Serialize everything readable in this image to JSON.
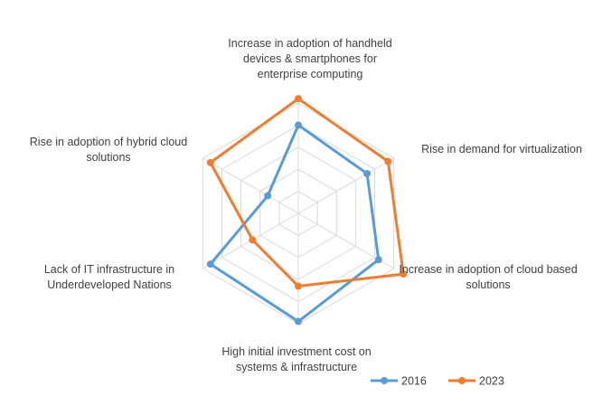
{
  "chart_data": {
    "type": "radar",
    "title": "",
    "axes": [
      "Increase in adoption of handheld devices & smartphones for enterprise computing",
      "Rise in demand for virtualization",
      "Increase in adoption of cloud based solutions",
      "High initial investment cost on systems & infrastructure",
      "Lack of IT infrastructure in Underdeveloped Nations",
      "Rise in adoption of hybrid cloud solutions"
    ],
    "axis_label_lines": [
      [
        "Increase in adoption of handheld",
        "devices & smartphones for",
        "enterprise computing"
      ],
      [
        "Rise in demand for virtualization"
      ],
      [
        "Increase in adoption of cloud based",
        "solutions"
      ],
      [
        "High initial investment cost on",
        "systems & infrastructure"
      ],
      [
        "Lack of IT infrastructure in",
        "Underdeveloped Nations"
      ],
      [
        "Rise in adoption of hybrid cloud",
        "solutions"
      ]
    ],
    "rmax": 5,
    "gridlines": 5,
    "series": [
      {
        "name": "2016",
        "color": "#5B9BD5",
        "values": [
          4.0,
          3.6,
          4.2,
          4.9,
          4.6,
          1.6
        ]
      },
      {
        "name": "2023",
        "color": "#ED7D31",
        "values": [
          5.2,
          4.7,
          5.5,
          3.3,
          2.4,
          4.6
        ]
      }
    ],
    "legend_position": "bottom-right"
  }
}
